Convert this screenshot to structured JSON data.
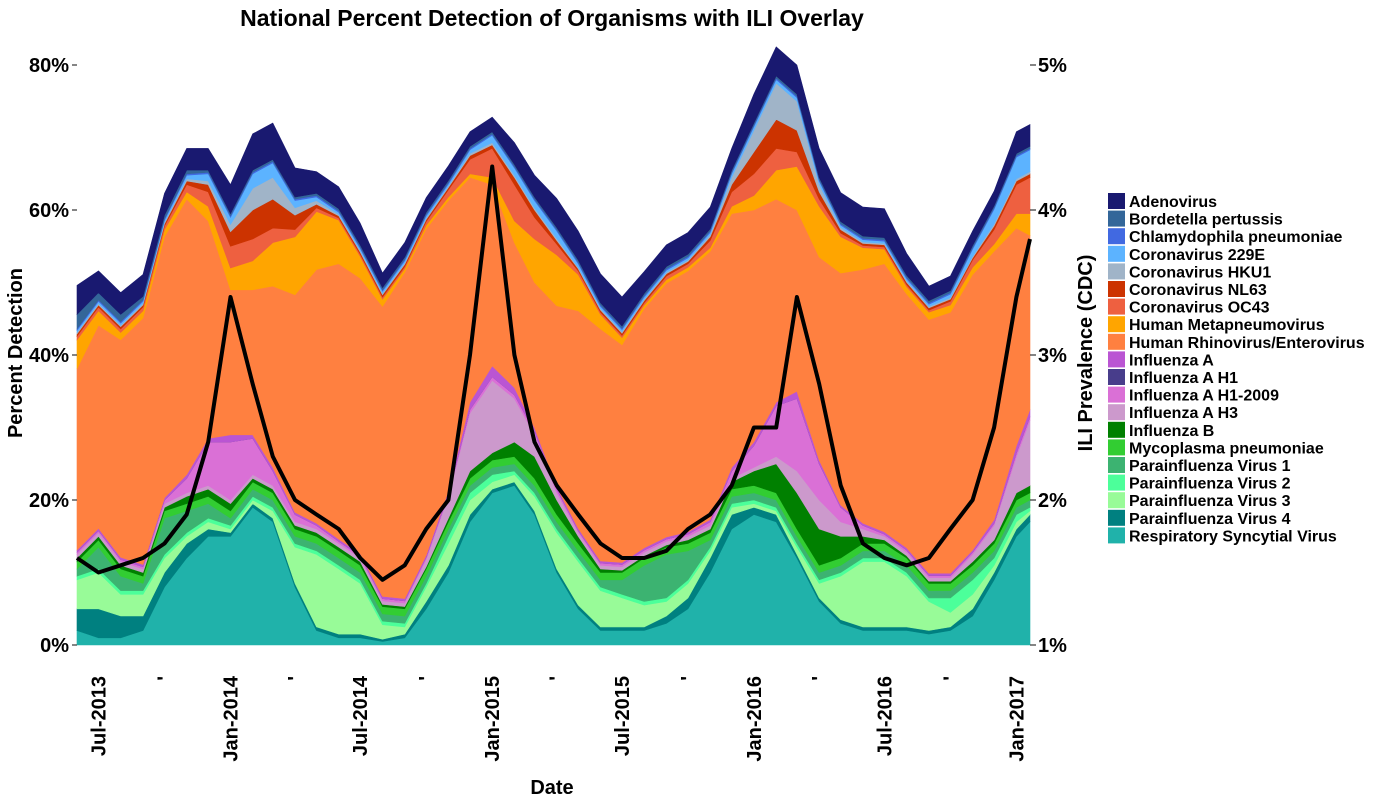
{
  "chart_data": {
    "type": "area",
    "stacked": true,
    "title": "National Percent Detection of Organisms with ILI Overlay",
    "xlabel": "Date",
    "ylabel": "Percent Detection",
    "y2label": "ILI Prevalence (CDC)",
    "ylim": [
      0,
      80
    ],
    "y2lim": [
      1,
      5
    ],
    "y_ticks": [
      {
        "value": 0,
        "label": "0%"
      },
      {
        "value": 20,
        "label": "20%"
      },
      {
        "value": 40,
        "label": "40%"
      },
      {
        "value": 60,
        "label": "60%"
      },
      {
        "value": 80,
        "label": "80%"
      }
    ],
    "y2_ticks": [
      {
        "value": 1,
        "label": "1%"
      },
      {
        "value": 2,
        "label": "2%"
      },
      {
        "value": 3,
        "label": "3%"
      },
      {
        "value": 4,
        "label": "4%"
      },
      {
        "value": 5,
        "label": "5%"
      }
    ],
    "x_ticks": [
      {
        "date": "2013-07-01",
        "label": "Jul-2013"
      },
      {
        "date": "2013-10-01",
        "label": "'"
      },
      {
        "date": "2014-01-01",
        "label": "Jan-2014"
      },
      {
        "date": "2014-04-01",
        "label": "'"
      },
      {
        "date": "2014-07-01",
        "label": "Jul-2014"
      },
      {
        "date": "2014-10-01",
        "label": "'"
      },
      {
        "date": "2015-01-01",
        "label": "Jan-2015"
      },
      {
        "date": "2015-04-01",
        "label": "'"
      },
      {
        "date": "2015-07-01",
        "label": "Jul-2015"
      },
      {
        "date": "2015-10-01",
        "label": "'"
      },
      {
        "date": "2016-01-01",
        "label": "Jan-2016"
      },
      {
        "date": "2016-04-01",
        "label": "'"
      },
      {
        "date": "2016-07-01",
        "label": "Jul-2016"
      },
      {
        "date": "2016-10-01",
        "label": "'"
      },
      {
        "date": "2017-01-01",
        "label": "Jan-2017"
      }
    ],
    "x_range": [
      "2013-06-01",
      "2017-01-20"
    ],
    "grid": false,
    "legend_position": "right",
    "x": [
      "2013-06-01",
      "2013-07-01",
      "2013-08-01",
      "2013-09-01",
      "2013-10-01",
      "2013-11-01",
      "2013-12-01",
      "2014-01-01",
      "2014-02-01",
      "2014-03-01",
      "2014-04-01",
      "2014-05-01",
      "2014-06-01",
      "2014-07-01",
      "2014-08-01",
      "2014-09-01",
      "2014-10-01",
      "2014-11-01",
      "2014-12-01",
      "2015-01-01",
      "2015-02-01",
      "2015-03-01",
      "2015-04-01",
      "2015-05-01",
      "2015-06-01",
      "2015-07-01",
      "2015-08-01",
      "2015-09-01",
      "2015-10-01",
      "2015-11-01",
      "2015-12-01",
      "2016-01-01",
      "2016-02-01",
      "2016-03-01",
      "2016-04-01",
      "2016-05-01",
      "2016-06-01",
      "2016-07-01",
      "2016-08-01",
      "2016-09-01",
      "2016-10-01",
      "2016-11-01",
      "2016-12-01",
      "2017-01-01",
      "2017-01-20"
    ],
    "series": [
      {
        "name": "Respiratory Syncytial Virus",
        "color": "#20B2AA",
        "values": [
          2,
          1,
          1,
          2,
          8,
          12,
          15,
          15,
          19,
          17,
          8,
          2,
          1,
          1,
          0.5,
          1,
          5,
          10,
          17,
          21,
          22,
          18,
          10,
          5,
          2,
          2,
          2,
          3,
          5,
          10,
          16,
          18,
          17,
          12,
          6,
          3,
          2,
          2,
          2,
          1.5,
          2,
          4,
          9,
          15,
          17
        ]
      },
      {
        "name": "Parainfluenza Virus 4",
        "color": "#008080",
        "values": [
          3,
          4,
          3,
          2,
          2,
          2,
          1,
          0.5,
          0.5,
          0.5,
          0.5,
          0.5,
          0.5,
          0.5,
          0.3,
          0.5,
          1,
          1,
          1,
          0.5,
          0.5,
          0.5,
          0.5,
          0.5,
          0.5,
          0.5,
          0.5,
          1,
          1.5,
          2,
          2,
          1,
          1,
          0.5,
          0.5,
          0.5,
          0.5,
          0.5,
          0.5,
          0.5,
          0.5,
          1,
          1,
          1,
          1
        ]
      },
      {
        "name": "Parainfluenza Virus 3",
        "color": "#98FB98",
        "values": [
          4,
          5,
          3,
          3,
          2,
          1,
          1,
          0.5,
          0.5,
          1,
          5,
          10,
          9,
          7,
          2,
          1,
          2,
          3,
          2,
          1,
          1,
          2,
          5,
          6,
          5,
          4,
          3,
          2,
          2,
          1,
          1,
          0.5,
          0.5,
          1,
          2,
          6,
          9,
          9,
          7,
          4,
          2,
          2,
          1,
          1,
          0.5
        ]
      },
      {
        "name": "Parainfluenza Virus 2",
        "color": "#4CFF9A",
        "values": [
          0.5,
          0.5,
          0.5,
          0.5,
          0.5,
          0.5,
          0.5,
          0.5,
          0.5,
          0.5,
          0.5,
          0.5,
          0.5,
          0.5,
          0.5,
          0.5,
          0.5,
          1,
          1,
          1,
          0.5,
          0.5,
          0.5,
          0.5,
          0.5,
          0.5,
          0.5,
          0.5,
          0.5,
          0.5,
          0.5,
          0.5,
          0.5,
          0.5,
          0.5,
          0.5,
          0.5,
          0.5,
          0.5,
          0.5,
          2,
          2,
          1,
          1,
          0.5
        ]
      },
      {
        "name": "Parainfluenza Virus 1",
        "color": "#3CB371",
        "values": [
          1,
          3,
          2,
          1,
          5,
          3,
          2,
          1,
          1,
          1,
          1,
          1,
          1,
          1,
          1,
          1,
          1,
          1,
          1,
          1,
          1,
          1,
          1,
          1,
          1,
          2,
          5,
          6,
          4,
          1,
          1,
          1,
          1,
          1,
          1,
          1,
          1,
          1,
          1,
          1,
          1,
          1,
          1,
          1,
          1
        ]
      },
      {
        "name": "Mycoplasma pneumoniae",
        "color": "#32CD32",
        "values": [
          1,
          1,
          1,
          1,
          1,
          1,
          1,
          1,
          1,
          1,
          1,
          1,
          1,
          1,
          1,
          1,
          1,
          1,
          1,
          1,
          1,
          1,
          1,
          1,
          1,
          1,
          1,
          1,
          1,
          1,
          1,
          1,
          1,
          1,
          1,
          1,
          1,
          1,
          1,
          1,
          1,
          1,
          1,
          1,
          1
        ]
      },
      {
        "name": "Influenza B",
        "color": "#008000",
        "values": [
          0.5,
          0.5,
          0.5,
          0.5,
          0.5,
          1,
          1,
          1,
          0.5,
          0.5,
          0.5,
          0.5,
          0.5,
          0.5,
          0.3,
          0.3,
          0.3,
          0.5,
          1,
          1,
          2,
          3,
          2,
          1,
          0.5,
          0.3,
          0.3,
          0.3,
          0.5,
          0.5,
          1,
          2,
          4,
          5,
          5,
          3,
          1,
          0.5,
          0.3,
          0.3,
          0.3,
          0.5,
          0.5,
          1,
          1
        ]
      },
      {
        "name": "Influenza A H3",
        "color": "#CC99CC",
        "values": [
          0.5,
          0.5,
          0.5,
          0.5,
          0.5,
          0.5,
          0.5,
          0.5,
          0.5,
          0.5,
          0.5,
          0.5,
          0.5,
          0.5,
          0.5,
          0.5,
          1,
          3,
          8,
          10,
          6,
          3,
          1,
          0.5,
          0.5,
          0.5,
          0.5,
          0.5,
          0.5,
          0.5,
          0.5,
          0.5,
          1,
          3,
          4,
          2,
          1,
          0.5,
          0.5,
          0.5,
          0.5,
          1,
          2,
          5,
          9
        ]
      },
      {
        "name": "Influenza A H1-2009",
        "color": "#DA70D6",
        "values": [
          0.3,
          0.3,
          0.3,
          0.3,
          0.5,
          2,
          6,
          8,
          5,
          2,
          1,
          0.5,
          0.3,
          0.3,
          0.3,
          0.3,
          0.3,
          0.3,
          0.5,
          0.5,
          0.5,
          0.5,
          0.5,
          0.3,
          0.3,
          0.3,
          0.3,
          0.3,
          0.3,
          0.5,
          1,
          3,
          7,
          10,
          5,
          2,
          0.5,
          0.3,
          0.3,
          0.3,
          0.3,
          0.3,
          0.3,
          0.5,
          0.5
        ]
      },
      {
        "name": "Influenza A H1",
        "color": "#483D8B",
        "values": [
          0,
          0,
          0,
          0,
          0,
          0,
          0,
          0,
          0,
          0,
          0,
          0,
          0,
          0,
          0,
          0,
          0,
          0,
          0,
          0,
          0,
          0,
          0,
          0,
          0,
          0,
          0,
          0,
          0,
          0,
          0,
          0,
          0,
          0,
          0,
          0,
          0,
          0,
          0,
          0,
          0,
          0,
          0,
          0,
          0
        ]
      },
      {
        "name": "Influenza A",
        "color": "#BA55D3",
        "values": [
          0.3,
          0.3,
          0.3,
          0.3,
          0.3,
          0.5,
          0.5,
          1,
          0.5,
          0.5,
          0.3,
          0.3,
          0.3,
          0.3,
          0.3,
          0.3,
          0.3,
          0.5,
          1,
          1.5,
          1,
          0.5,
          0.3,
          0.3,
          0.3,
          0.3,
          0.3,
          0.3,
          0.3,
          0.3,
          0.5,
          0.5,
          0.5,
          1,
          0.5,
          0.3,
          0.3,
          0.3,
          0.3,
          0.3,
          0.3,
          0.3,
          0.5,
          1,
          1
        ]
      },
      {
        "name": "Human Rhinovirus/Enterovirus",
        "color": "#FF8040",
        "values": [
          25,
          28,
          30,
          34,
          36,
          38,
          30,
          20,
          20,
          25,
          30,
          35,
          38,
          38,
          40,
          45,
          45,
          40,
          31,
          25,
          20,
          20,
          25,
          30,
          32,
          30,
          33,
          35,
          36,
          37,
          35,
          32,
          28,
          25,
          28,
          32,
          35,
          37,
          35,
          35,
          36,
          38,
          37,
          30,
          24
        ]
      },
      {
        "name": "Human Metapneumovirus",
        "color": "#FFA500",
        "values": [
          4,
          2,
          1,
          1,
          1,
          1,
          2,
          3,
          4,
          6,
          8,
          8,
          6,
          3,
          1,
          0.5,
          0.5,
          0.5,
          0.5,
          1,
          3,
          6,
          7,
          5,
          2,
          1,
          0.5,
          0.5,
          0.5,
          0.5,
          1,
          2,
          4,
          6,
          7,
          5,
          3,
          2,
          1,
          1,
          1,
          1,
          1,
          2,
          3
        ]
      },
      {
        "name": "Coronavirus OC43",
        "color": "#EE6040",
        "values": [
          0.5,
          0.5,
          0.5,
          0.5,
          0.5,
          1,
          2,
          3,
          3,
          2,
          1,
          0.5,
          0.3,
          0.3,
          0.3,
          0.3,
          0.5,
          1,
          2,
          4,
          5,
          3,
          1.5,
          0.5,
          0.3,
          0.3,
          0.3,
          0.5,
          0.5,
          1,
          2,
          3,
          3,
          2,
          1,
          0.5,
          0.3,
          0.3,
          0.3,
          0.3,
          0.5,
          1,
          2,
          4,
          5
        ]
      },
      {
        "name": "Coronavirus NL63",
        "color": "#CC3300",
        "values": [
          0.3,
          0.3,
          0.3,
          0.3,
          0.3,
          0.5,
          1,
          2,
          4,
          4,
          2,
          0.5,
          0.3,
          0.3,
          0.3,
          0.3,
          0.3,
          0.3,
          0.5,
          0.5,
          1,
          1,
          0.5,
          0.3,
          0.3,
          0.3,
          0.3,
          0.3,
          0.3,
          0.5,
          1,
          3,
          4,
          3,
          1,
          0.5,
          0.3,
          0.3,
          0.3,
          0.3,
          0.3,
          0.3,
          0.5,
          0.5,
          0.5
        ]
      },
      {
        "name": "Coronavirus HKU1",
        "color": "#A0B4C8",
        "values": [
          0.2,
          0.2,
          0.2,
          0.2,
          0.2,
          0.3,
          0.5,
          1,
          3,
          3,
          1,
          0.5,
          0.2,
          0.2,
          0.2,
          0.2,
          0.2,
          0.2,
          0.3,
          0.3,
          0.3,
          0.3,
          0.3,
          0.2,
          0.2,
          0.2,
          0.2,
          0.2,
          0.2,
          0.3,
          1,
          3,
          5,
          4,
          1,
          0.3,
          0.2,
          0.2,
          0.2,
          0.2,
          0.2,
          0.2,
          0.3,
          0.3,
          0.3
        ]
      },
      {
        "name": "Coronavirus 229E",
        "color": "#5CB3FF",
        "values": [
          0.3,
          0.3,
          0.3,
          0.3,
          0.3,
          0.5,
          1,
          1,
          2,
          2,
          1,
          0.5,
          0.3,
          0.3,
          0.3,
          0.3,
          0.3,
          0.3,
          0.5,
          1,
          1,
          1,
          1,
          0.5,
          0.3,
          0.3,
          0.3,
          0.3,
          0.3,
          0.3,
          0.5,
          0.5,
          0.5,
          0.5,
          0.5,
          0.3,
          0.3,
          0.3,
          0.3,
          0.3,
          0.5,
          1,
          2,
          3,
          3
        ]
      },
      {
        "name": "Chlamydophila pneumoniae",
        "color": "#4169E1",
        "values": [
          0.2,
          0.2,
          0.2,
          0.2,
          0.2,
          0.2,
          0.2,
          0.2,
          0.2,
          0.2,
          0.2,
          0.2,
          0.2,
          0.2,
          0.2,
          0.2,
          0.2,
          0.2,
          0.2,
          0.2,
          0.2,
          0.2,
          0.2,
          0.2,
          0.2,
          0.2,
          0.2,
          0.2,
          0.2,
          0.2,
          0.2,
          0.2,
          0.2,
          0.2,
          0.2,
          0.2,
          0.2,
          0.2,
          0.2,
          0.2,
          0.2,
          0.2,
          0.2,
          0.2,
          0.2
        ]
      },
      {
        "name": "Bordetella pertussis",
        "color": "#336699",
        "values": [
          2,
          1,
          1,
          0.5,
          0.5,
          0.5,
          0.3,
          0.3,
          0.3,
          0.3,
          0.3,
          0.3,
          0.3,
          0.3,
          0.3,
          0.3,
          0.3,
          0.3,
          0.3,
          0.3,
          0.3,
          0.3,
          0.3,
          0.3,
          0.3,
          0.3,
          0.3,
          0.3,
          0.3,
          0.3,
          0.3,
          0.3,
          0.3,
          0.3,
          0.3,
          0.3,
          0.3,
          0.3,
          0.3,
          0.3,
          0.3,
          0.3,
          0.3,
          0.3,
          0.3
        ]
      },
      {
        "name": "Adenovirus",
        "color": "#191970",
        "values": [
          4,
          3,
          3,
          3,
          3,
          3,
          3,
          4,
          5,
          5,
          4,
          3,
          3,
          3,
          2,
          2,
          2,
          2,
          2,
          2,
          3,
          3,
          4,
          4,
          4,
          4,
          3,
          3,
          3,
          3,
          3,
          4,
          4,
          4,
          4,
          4,
          4,
          4,
          3,
          2,
          2,
          2,
          2,
          3,
          3
        ]
      }
    ],
    "ili_overlay": {
      "name": "ILI Prevalence (CDC)",
      "color": "#000000",
      "values": [
        1.6,
        1.5,
        1.55,
        1.6,
        1.7,
        1.9,
        2.4,
        3.4,
        2.8,
        2.3,
        2.0,
        1.9,
        1.8,
        1.6,
        1.45,
        1.55,
        1.8,
        2.0,
        3.0,
        4.3,
        3.0,
        2.4,
        2.1,
        1.9,
        1.7,
        1.6,
        1.6,
        1.65,
        1.8,
        1.9,
        2.1,
        2.5,
        2.5,
        3.4,
        2.8,
        2.1,
        1.7,
        1.6,
        1.55,
        1.6,
        1.8,
        2.0,
        2.5,
        3.4,
        3.8
      ]
    }
  }
}
